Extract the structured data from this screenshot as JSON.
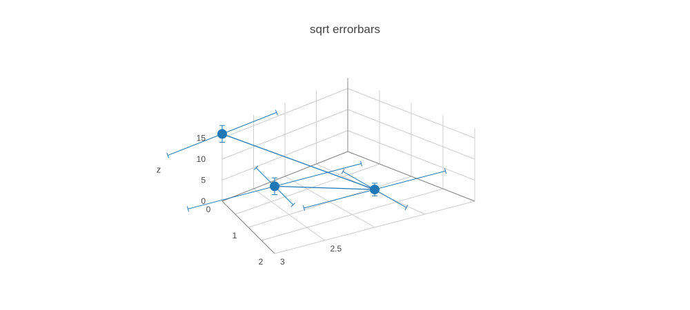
{
  "chart_data": {
    "type": "scatter3d",
    "title": "sqrt errorbars",
    "zlabel": "z",
    "x_ticks": [
      "0",
      "1",
      "2"
    ],
    "y_ticks": [
      "2.5",
      "3"
    ],
    "z_ticks": [
      "0",
      "5",
      "10",
      "15"
    ],
    "series": [
      {
        "mode": "lines+markers",
        "points": [
          {
            "x": 0,
            "y": 3,
            "z": 16
          },
          {
            "x": 2,
            "y": 2,
            "z": 9
          },
          {
            "x": 2,
            "y": 3,
            "z": 16
          }
        ]
      }
    ],
    "color": "#1f77b4"
  }
}
